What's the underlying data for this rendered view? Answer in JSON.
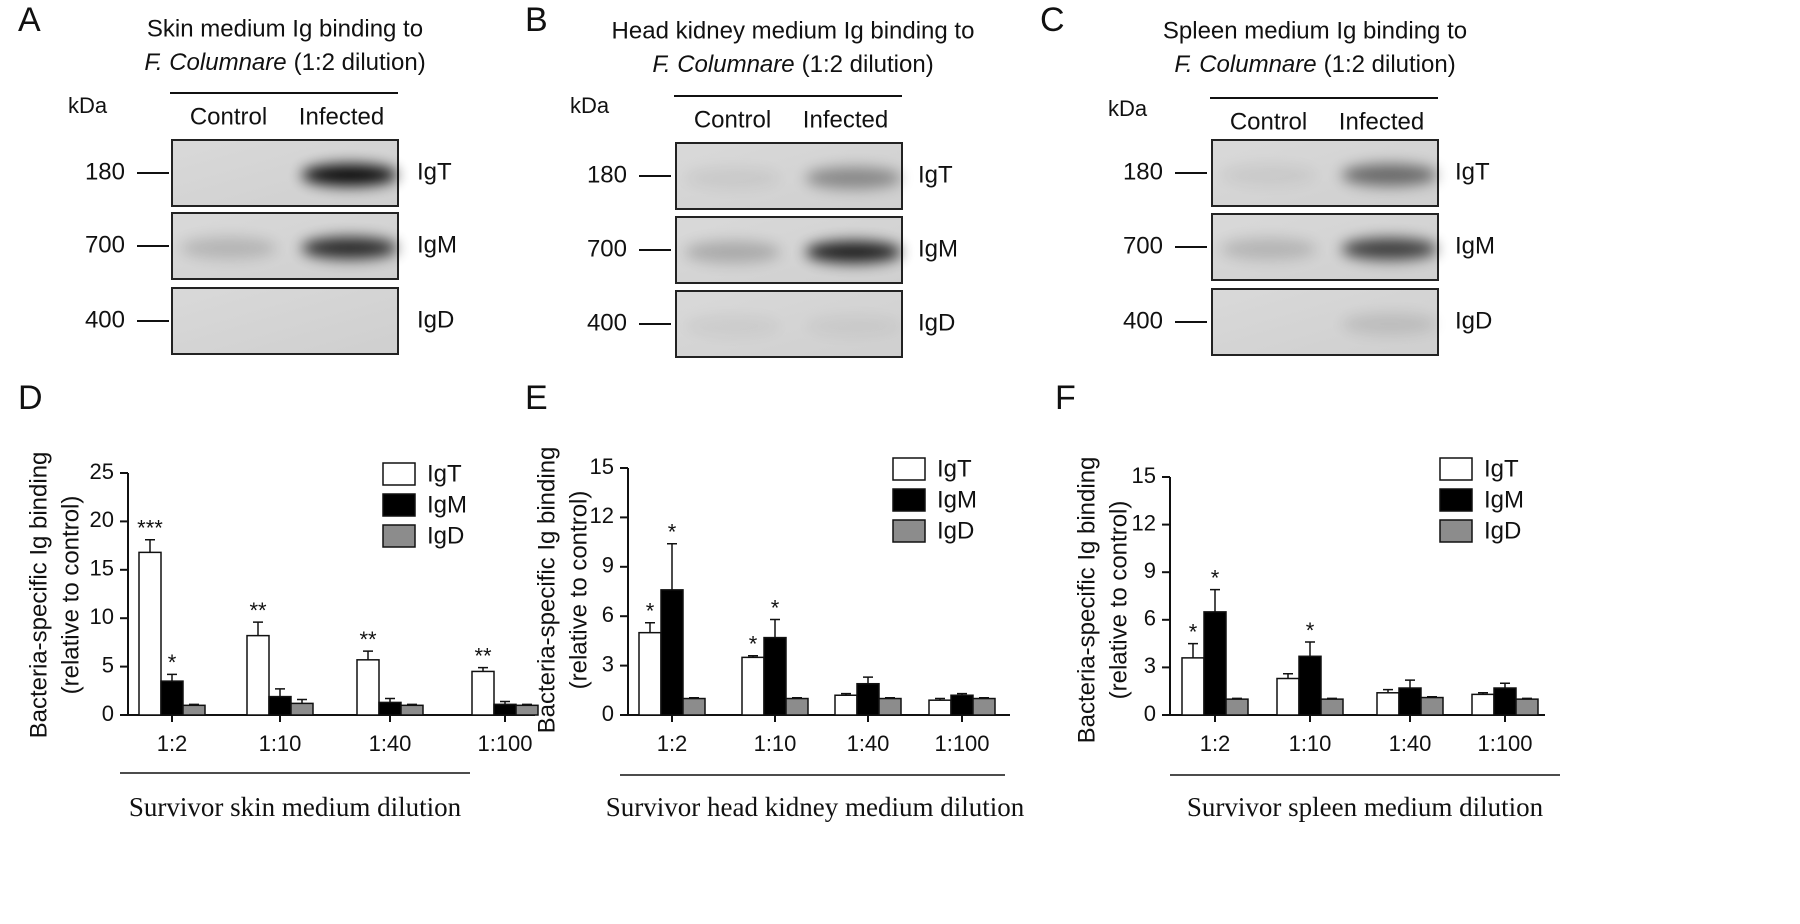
{
  "panel_labels": [
    "A",
    "B",
    "C",
    "D",
    "E",
    "F"
  ],
  "blots": [
    {
      "title": "Skin medium Ig binding to",
      "organism": "F. Columnare",
      "dilution": "(1:2 dilution)",
      "unit": "kDa",
      "lanes": [
        "Control",
        "Infected"
      ],
      "rows": [
        {
          "marker": 180,
          "label": "IgT"
        },
        {
          "marker": 700,
          "label": "IgM"
        },
        {
          "marker": 400,
          "label": "IgD"
        }
      ]
    },
    {
      "title": "Head kidney medium Ig binding to",
      "organism": "F. Columnare",
      "dilution": "(1:2 dilution)",
      "unit": "kDa",
      "lanes": [
        "Control",
        "Infected"
      ],
      "rows": [
        {
          "marker": 180,
          "label": "IgT"
        },
        {
          "marker": 700,
          "label": "IgM"
        },
        {
          "marker": 400,
          "label": "IgD"
        }
      ]
    },
    {
      "title": "Spleen medium Ig binding to",
      "organism": "F. Columnare",
      "dilution": "(1:2 dilution)",
      "unit": "kDa",
      "lanes": [
        "Control",
        "Infected"
      ],
      "rows": [
        {
          "marker": 180,
          "label": "IgT"
        },
        {
          "marker": 700,
          "label": "IgM"
        },
        {
          "marker": 400,
          "label": "IgD"
        }
      ]
    }
  ],
  "chart_data": [
    {
      "type": "bar",
      "y_label": [
        "Bacteria-specific Ig binding",
        "(relative to control)"
      ],
      "x_label": "Survivor skin medium dilution",
      "categories": [
        "1:2",
        "1:10",
        "1:40",
        "1:100"
      ],
      "ylim": [
        0,
        25
      ],
      "yticks": [
        0,
        5,
        10,
        15,
        20,
        25
      ],
      "legend": "upper right",
      "series": [
        {
          "name": "IgT",
          "color": "#ffffff",
          "values": [
            16.8,
            8.2,
            5.7,
            4.5
          ],
          "errors": [
            1.3,
            1.4,
            0.9,
            0.4
          ],
          "significance": [
            "***",
            "**",
            "**",
            "**"
          ]
        },
        {
          "name": "IgM",
          "color": "#000000",
          "values": [
            3.5,
            1.9,
            1.3,
            1.1
          ],
          "errors": [
            0.7,
            0.8,
            0.4,
            0.3
          ],
          "significance": [
            "*",
            null,
            null,
            null
          ]
        },
        {
          "name": "IgD",
          "color": "#8c8c8c",
          "values": [
            1.0,
            1.2,
            1.0,
            1.0
          ],
          "errors": [
            0.1,
            0.4,
            0.1,
            0.1
          ],
          "significance": [
            null,
            null,
            null,
            null
          ]
        }
      ]
    },
    {
      "type": "bar",
      "y_label": [
        "Bacteria-specific Ig binding",
        "(relative to control)"
      ],
      "x_label": "Survivor head kidney medium dilution",
      "categories": [
        "1:2",
        "1:10",
        "1:40",
        "1:100"
      ],
      "ylim": [
        0,
        15
      ],
      "yticks": [
        0,
        3,
        6,
        9,
        12,
        15
      ],
      "legend": "upper right",
      "series": [
        {
          "name": "IgT",
          "color": "#ffffff",
          "values": [
            5.0,
            3.5,
            1.2,
            0.9
          ],
          "errors": [
            0.6,
            0.1,
            0.1,
            0.1
          ],
          "significance": [
            "*",
            "*",
            null,
            null
          ]
        },
        {
          "name": "IgM",
          "color": "#000000",
          "values": [
            7.6,
            4.7,
            1.9,
            1.2
          ],
          "errors": [
            2.8,
            1.1,
            0.4,
            0.1
          ],
          "significance": [
            "*",
            "*",
            null,
            null
          ]
        },
        {
          "name": "IgD",
          "color": "#8c8c8c",
          "values": [
            1.0,
            1.0,
            1.0,
            1.0
          ],
          "errors": [
            0.05,
            0.05,
            0.05,
            0.05
          ],
          "significance": [
            null,
            null,
            null,
            null
          ]
        }
      ]
    },
    {
      "type": "bar",
      "y_label": [
        "Bacteria-specific Ig binding",
        "(relative to control)"
      ],
      "x_label": "Survivor spleen medium dilution",
      "categories": [
        "1:2",
        "1:10",
        "1:40",
        "1:100"
      ],
      "ylim": [
        0,
        15
      ],
      "yticks": [
        0,
        3,
        6,
        9,
        12,
        15
      ],
      "legend": "upper right",
      "series": [
        {
          "name": "IgT",
          "color": "#ffffff",
          "values": [
            3.6,
            2.3,
            1.4,
            1.3
          ],
          "errors": [
            0.9,
            0.3,
            0.2,
            0.1
          ],
          "significance": [
            "*",
            null,
            null,
            null
          ]
        },
        {
          "name": "IgM",
          "color": "#000000",
          "values": [
            6.5,
            3.7,
            1.7,
            1.7
          ],
          "errors": [
            1.4,
            0.9,
            0.5,
            0.3
          ],
          "significance": [
            "*",
            "*",
            null,
            null
          ]
        },
        {
          "name": "IgD",
          "color": "#8c8c8c",
          "values": [
            1.0,
            1.0,
            1.1,
            1.0
          ],
          "errors": [
            0.05,
            0.05,
            0.05,
            0.05
          ],
          "significance": [
            null,
            null,
            null,
            null
          ]
        }
      ]
    }
  ]
}
